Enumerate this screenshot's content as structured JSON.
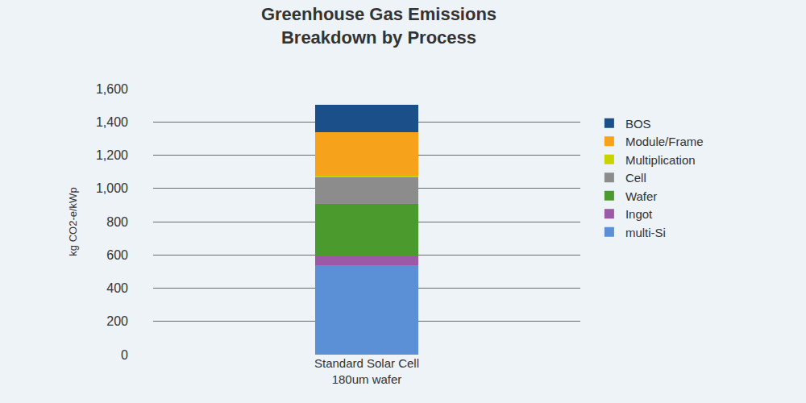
{
  "chart_data": {
    "type": "bar",
    "stacked": true,
    "title": "Greenhouse Gas Emissions\nBreakdown by Process",
    "y_label": "kg CO2-e/kWp",
    "categories": [
      "Standard Solar Cell\n180um wafer"
    ],
    "series": [
      {
        "name": "multi-Si",
        "color": "#5b8fd6",
        "values": [
          540
        ]
      },
      {
        "name": "Ingot",
        "color": "#9b59a6",
        "values": [
          55
        ]
      },
      {
        "name": "Wafer",
        "color": "#4a9a2e",
        "values": [
          310
        ]
      },
      {
        "name": "Cell",
        "color": "#8c8c8c",
        "values": [
          165
        ]
      },
      {
        "name": "Multiplication",
        "color": "#c8d400",
        "values": [
          5
        ]
      },
      {
        "name": "Module/Frame",
        "color": "#f7a21b",
        "values": [
          265
        ]
      },
      {
        "name": "BOS",
        "color": "#1a4f8a",
        "values": [
          165
        ]
      }
    ],
    "ylim": [
      0,
      1600
    ],
    "yticks": [
      0,
      200,
      400,
      600,
      800,
      {
        "value": 1000,
        "label": "1,000"
      },
      {
        "value": 1200,
        "label": "1,200"
      },
      {
        "value": 1400,
        "label": "1,400"
      },
      {
        "value": 1600,
        "label": "1,600"
      }
    ],
    "grid": true,
    "legend": "right"
  }
}
